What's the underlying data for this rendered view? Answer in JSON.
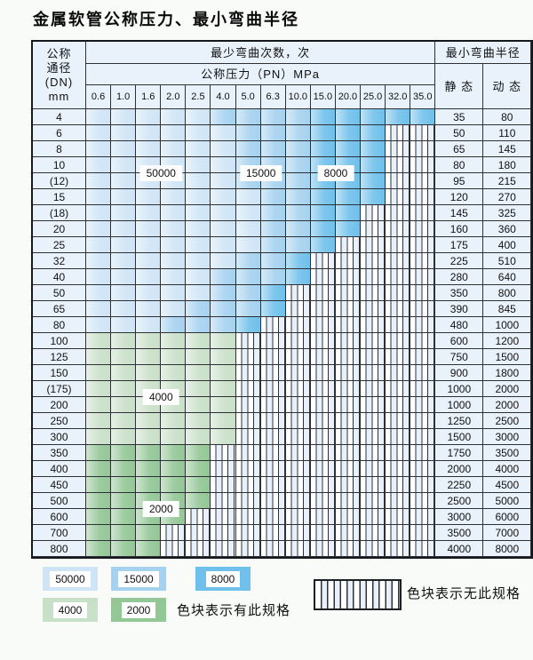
{
  "title": "金属软管公称压力、最小弯曲半径",
  "table": {
    "header": {
      "dn_lines": [
        "公称",
        "通径",
        "(DN)",
        "mm"
      ],
      "bend_cycles_label": "最少弯曲次数，次",
      "pressure_label": "公称压力（PN）MPa",
      "radius_label": "最小弯曲半径",
      "static_label": "静 态",
      "dynamic_label": "动 态",
      "pressures": [
        "0.6",
        "1.0",
        "1.6",
        "2.0",
        "2.5",
        "4.0",
        "5.0",
        "6.3",
        "10.0",
        "15.0",
        "20.0",
        "25.0",
        "32.0",
        "35.0"
      ]
    },
    "band_values": {
      "b1": "50000",
      "b2": "15000",
      "b3": "8000",
      "g1": "4000",
      "g2": "2000"
    },
    "rows": [
      {
        "dn": "4",
        "static": "35",
        "dynamic": "80",
        "bands": [
          [
            "b1",
            1,
            5
          ],
          [
            "b2",
            6,
            9
          ],
          [
            "b3",
            10,
            14
          ]
        ]
      },
      {
        "dn": "6",
        "static": "50",
        "dynamic": "110",
        "bands": [
          [
            "b1",
            1,
            6
          ],
          [
            "b2",
            7,
            9
          ],
          [
            "b3",
            10,
            12
          ]
        ]
      },
      {
        "dn": "8",
        "static": "65",
        "dynamic": "145",
        "bands": [
          [
            "b1",
            1,
            6
          ],
          [
            "b2",
            7,
            9
          ],
          [
            "b3",
            10,
            12
          ]
        ]
      },
      {
        "dn": "10",
        "static": "80",
        "dynamic": "180",
        "bands": [
          [
            "b1",
            1,
            6
          ],
          [
            "b2",
            7,
            9
          ],
          [
            "b3",
            10,
            12
          ]
        ]
      },
      {
        "dn": "(12)",
        "static": "95",
        "dynamic": "215",
        "bands": [
          [
            "b1",
            1,
            6
          ],
          [
            "b2",
            7,
            9
          ],
          [
            "b3",
            10,
            12
          ]
        ]
      },
      {
        "dn": "15",
        "static": "120",
        "dynamic": "270",
        "bands": [
          [
            "b1",
            1,
            7
          ],
          [
            "b2",
            8,
            9
          ],
          [
            "b3",
            10,
            12
          ]
        ]
      },
      {
        "dn": "(18)",
        "static": "145",
        "dynamic": "325",
        "bands": [
          [
            "b1",
            1,
            7
          ],
          [
            "b2",
            8,
            9
          ],
          [
            "b3",
            10,
            11
          ]
        ]
      },
      {
        "dn": "20",
        "static": "160",
        "dynamic": "360",
        "bands": [
          [
            "b1",
            1,
            7
          ],
          [
            "b2",
            8,
            9
          ],
          [
            "b3",
            10,
            11
          ]
        ]
      },
      {
        "dn": "25",
        "static": "175",
        "dynamic": "400",
        "bands": [
          [
            "b1",
            1,
            7
          ],
          [
            "b2",
            8,
            9
          ],
          [
            "b3",
            10,
            10
          ]
        ]
      },
      {
        "dn": "32",
        "static": "225",
        "dynamic": "510",
        "bands": [
          [
            "b1",
            1,
            6
          ],
          [
            "b2",
            7,
            8
          ],
          [
            "b3",
            9,
            9
          ]
        ]
      },
      {
        "dn": "40",
        "static": "280",
        "dynamic": "640",
        "bands": [
          [
            "b1",
            1,
            5
          ],
          [
            "b2",
            6,
            8
          ],
          [
            "b3",
            9,
            9
          ]
        ]
      },
      {
        "dn": "50",
        "static": "350",
        "dynamic": "800",
        "bands": [
          [
            "b1",
            1,
            5
          ],
          [
            "b2",
            6,
            7
          ],
          [
            "b3",
            8,
            8
          ]
        ]
      },
      {
        "dn": "65",
        "static": "390",
        "dynamic": "845",
        "bands": [
          [
            "b1",
            1,
            4
          ],
          [
            "b2",
            5,
            7
          ],
          [
            "b3",
            8,
            8
          ]
        ]
      },
      {
        "dn": "80",
        "static": "480",
        "dynamic": "1000",
        "bands": [
          [
            "b1",
            1,
            3
          ],
          [
            "b2",
            4,
            6
          ],
          [
            "b3",
            7,
            7
          ]
        ]
      },
      {
        "dn": "100",
        "static": "600",
        "dynamic": "1200",
        "bands": [
          [
            "g1",
            1,
            6
          ]
        ]
      },
      {
        "dn": "125",
        "static": "750",
        "dynamic": "1500",
        "bands": [
          [
            "g1",
            1,
            6
          ]
        ]
      },
      {
        "dn": "150",
        "static": "900",
        "dynamic": "1800",
        "bands": [
          [
            "g1",
            1,
            6
          ]
        ]
      },
      {
        "dn": "(175)",
        "static": "1000",
        "dynamic": "2000",
        "bands": [
          [
            "g1",
            1,
            6
          ]
        ]
      },
      {
        "dn": "200",
        "static": "1000",
        "dynamic": "2000",
        "bands": [
          [
            "g1",
            1,
            6
          ]
        ]
      },
      {
        "dn": "250",
        "static": "1250",
        "dynamic": "2500",
        "bands": [
          [
            "g1",
            1,
            6
          ]
        ]
      },
      {
        "dn": "300",
        "static": "1500",
        "dynamic": "3000",
        "bands": [
          [
            "g1",
            1,
            6
          ]
        ]
      },
      {
        "dn": "350",
        "static": "1750",
        "dynamic": "3500",
        "bands": [
          [
            "g2",
            1,
            5
          ]
        ]
      },
      {
        "dn": "400",
        "static": "2000",
        "dynamic": "4000",
        "bands": [
          [
            "g2",
            1,
            5
          ]
        ]
      },
      {
        "dn": "450",
        "static": "2250",
        "dynamic": "4500",
        "bands": [
          [
            "g2",
            1,
            5
          ]
        ]
      },
      {
        "dn": "500",
        "static": "2500",
        "dynamic": "5000",
        "bands": [
          [
            "g2",
            1,
            5
          ]
        ]
      },
      {
        "dn": "600",
        "static": "3000",
        "dynamic": "6000",
        "bands": [
          [
            "g2",
            1,
            4
          ]
        ]
      },
      {
        "dn": "700",
        "static": "3500",
        "dynamic": "7000",
        "bands": [
          [
            "g2",
            1,
            3
          ]
        ]
      },
      {
        "dn": "800",
        "static": "4000",
        "dynamic": "8000",
        "bands": [
          [
            "g2",
            1,
            3
          ]
        ]
      }
    ],
    "overlays": [
      {
        "text": "50000",
        "cols": [
          3,
          4
        ],
        "row_boundary": 4
      },
      {
        "text": "15000",
        "cols": [
          7,
          8
        ],
        "row_boundary": 4
      },
      {
        "text": "8000",
        "cols": [
          10,
          11
        ],
        "row_boundary": 4
      },
      {
        "text": "4000",
        "cols": [
          3,
          4
        ],
        "row_boundary": 18
      },
      {
        "text": "2000",
        "cols": [
          3,
          4
        ],
        "row_boundary": 25
      }
    ]
  },
  "legend": {
    "swatches": [
      {
        "label": "50000",
        "color_key": "b1"
      },
      {
        "label": "15000",
        "color_key": "b2"
      },
      {
        "label": "8000",
        "color_key": "b3"
      },
      {
        "label": "4000",
        "color_key": "g1"
      },
      {
        "label": "2000",
        "color_key": "g2"
      }
    ],
    "has_spec_text": "色块表示有此规格",
    "no_spec_text": "色块表示无此规格"
  },
  "colors": {
    "b1": "#cfe5f6",
    "b2": "#a6d2f0",
    "b3": "#6fc0ea",
    "g1": "#c9e0c8",
    "g2": "#93c796",
    "header_bg": "#e9f2fb",
    "hatch_bg": "#e8f1fa",
    "grid": "#2d3136",
    "page_bg": "#f8fbf8"
  }
}
